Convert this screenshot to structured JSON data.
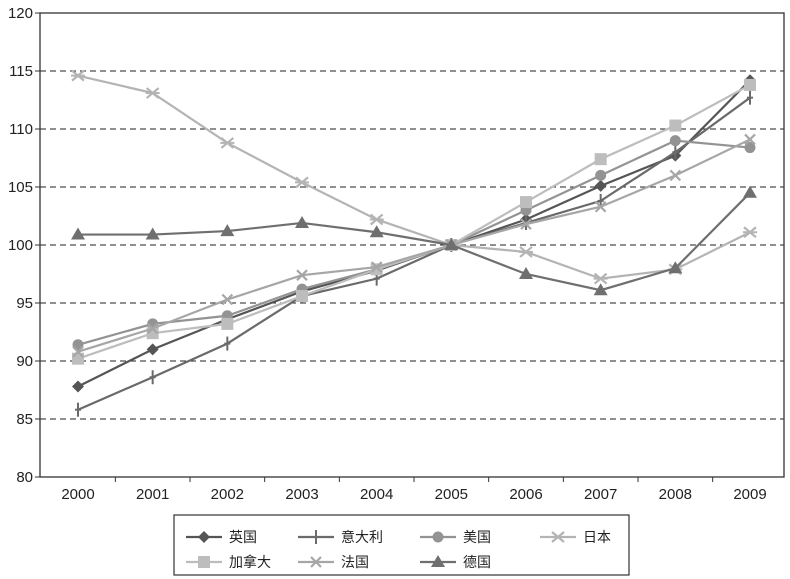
{
  "chart_data": {
    "type": "line",
    "title": "",
    "xlabel": "",
    "ylabel": "",
    "x": [
      2000,
      2001,
      2002,
      2003,
      2004,
      2005,
      2006,
      2007,
      2008,
      2009
    ],
    "x_tick_labels": [
      "2000",
      "2001",
      "2002",
      "2003",
      "2004",
      "2005",
      "2006",
      "2007",
      "2008",
      "2009"
    ],
    "ylim": [
      80,
      120
    ],
    "y_ticks": [
      80,
      85,
      90,
      95,
      100,
      105,
      110,
      115,
      120
    ],
    "y_tick_labels": [
      "80",
      "85",
      "90",
      "95",
      "100",
      "105",
      "110",
      "115",
      "120"
    ],
    "grid": "horizontal dashed at 85, 90, 95, 100, 105, 110, 115",
    "legend_position": "bottom",
    "series": [
      {
        "name": "英国",
        "marker": "diamond",
        "color": "#555555",
        "values": [
          87.8,
          91.0,
          93.6,
          96.0,
          97.8,
          100,
          102.2,
          105.1,
          107.7,
          114.2
        ]
      },
      {
        "name": "意大利",
        "marker": "plus",
        "color": "#6a6a6a",
        "values": [
          85.8,
          88.6,
          91.5,
          95.6,
          97.1,
          100,
          101.9,
          103.8,
          108.0,
          112.7
        ]
      },
      {
        "name": "美国",
        "marker": "circle",
        "color": "#939393",
        "values": [
          91.4,
          93.2,
          93.9,
          96.2,
          97.9,
          100,
          103.0,
          106.0,
          109.0,
          108.4
        ]
      },
      {
        "name": "日本",
        "marker": "asterisk",
        "color": "#b4b4b4",
        "values": [
          114.6,
          113.1,
          108.8,
          105.4,
          102.2,
          100,
          99.4,
          97.1,
          97.9,
          101.1
        ]
      },
      {
        "name": "加拿大",
        "marker": "square",
        "color": "#bdbdbd",
        "values": [
          90.2,
          92.4,
          93.2,
          95.6,
          97.9,
          100,
          103.7,
          107.4,
          110.3,
          113.8
        ]
      },
      {
        "name": "法国",
        "marker": "cross",
        "color": "#a6a6a6",
        "values": [
          90.8,
          92.8,
          95.3,
          97.4,
          98.1,
          100,
          101.8,
          103.3,
          106.0,
          109.1
        ]
      },
      {
        "name": "德国",
        "marker": "triangle",
        "color": "#6f6f6f",
        "values": [
          100.9,
          100.9,
          101.2,
          101.9,
          101.1,
          100,
          97.5,
          96.1,
          98.0,
          104.5
        ]
      }
    ]
  }
}
